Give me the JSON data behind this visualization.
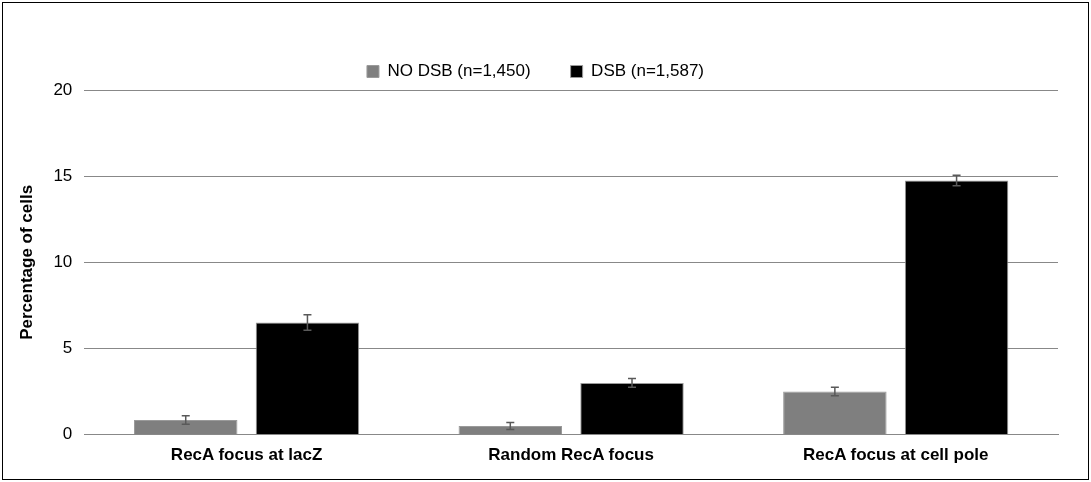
{
  "chart_data": {
    "type": "bar",
    "ylabel": "Percentage of cells",
    "categories": [
      "RecA focus at lacZ",
      "Random RecA focus",
      "RecA focus at cell pole"
    ],
    "series": [
      {
        "name": "NO DSB (n=1,450)",
        "color": "#7f7f7f",
        "values": [
          0.85,
          0.5,
          2.5
        ],
        "errors": [
          0.25,
          0.2,
          0.25
        ]
      },
      {
        "name": "DSB (n=1,587)",
        "color": "#000000",
        "values": [
          6.5,
          3.0,
          14.75
        ],
        "errors": [
          0.45,
          0.25,
          0.3
        ]
      }
    ],
    "ylim": [
      0,
      20
    ],
    "yticks": [
      0,
      5,
      10,
      15,
      20
    ],
    "grid": "y",
    "legend": "top"
  }
}
